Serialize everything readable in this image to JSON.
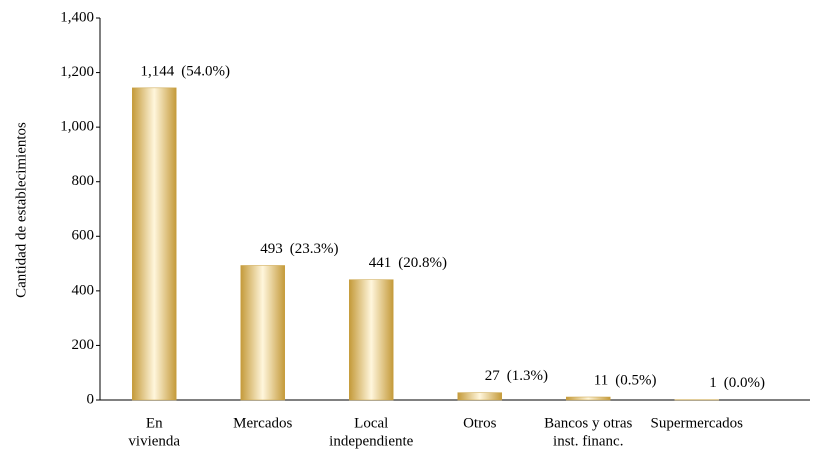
{
  "chart_data": {
    "type": "bar",
    "y_label": "Cantidad de establecimientos",
    "categories": [
      [
        "En",
        "vivienda"
      ],
      [
        "Mercados"
      ],
      [
        "Local",
        "independiente"
      ],
      [
        "Otros"
      ],
      [
        "Bancos y otras",
        "inst. financ."
      ],
      [
        "Supermercados"
      ]
    ],
    "values": [
      1144,
      493,
      441,
      27,
      11,
      1
    ],
    "value_labels": [
      "1,144",
      "493",
      "441",
      "27",
      "11",
      "1"
    ],
    "shares": [
      54.0,
      23.3,
      20.8,
      1.3,
      0.5,
      0.0
    ],
    "share_labels": [
      "(54.0%)",
      "(23.3%)",
      "(20.8%)",
      "(1.3%)",
      "(0.5%)",
      "(0.0%)"
    ],
    "color": "#c9a040",
    "ylim": [
      0,
      1400
    ],
    "yticks": [
      0,
      200,
      400,
      600,
      800,
      {
        "value": 1000,
        "label": "1,000"
      },
      {
        "value": 1200,
        "label": "1,200"
      },
      {
        "value": 1400,
        "label": "1,400"
      }
    ],
    "grid": false
  }
}
